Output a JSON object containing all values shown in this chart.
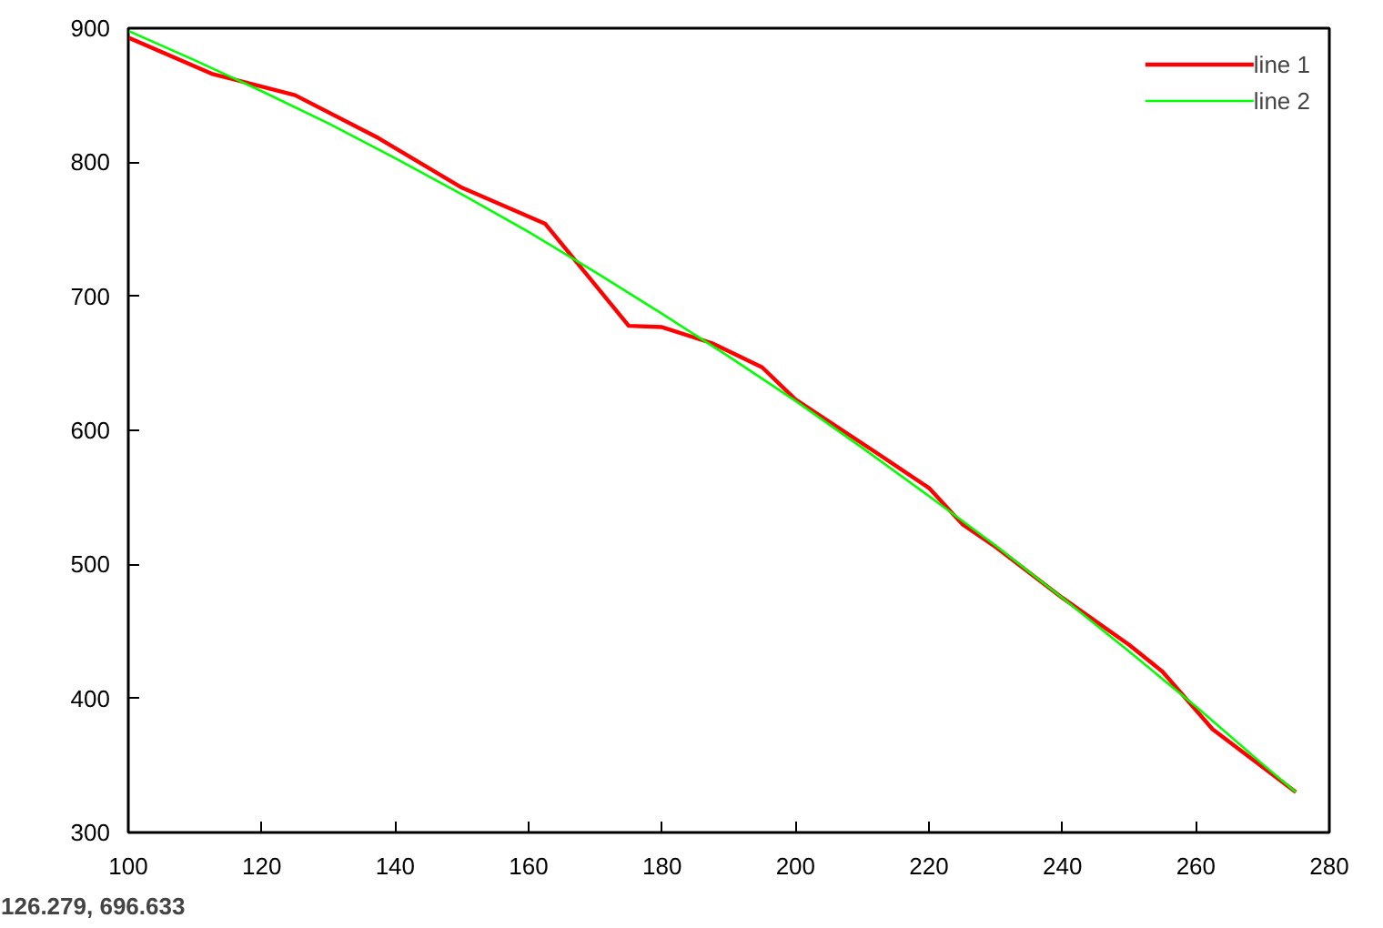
{
  "chart_data": {
    "type": "line",
    "xlim": [
      100,
      280
    ],
    "ylim": [
      300,
      900
    ],
    "xticks": [
      100,
      120,
      140,
      160,
      180,
      200,
      220,
      240,
      260,
      280
    ],
    "yticks": [
      300,
      400,
      500,
      600,
      700,
      800,
      900
    ],
    "grid": false,
    "legend": "top right",
    "marker": "none",
    "line_style": "solid",
    "annotations": [
      "126.279, 696.633"
    ],
    "series": [
      {
        "name": "line 1",
        "color": "#ff0000",
        "x": [
          100,
          112.5,
          125,
          137.5,
          150,
          162.5,
          175,
          180,
          187.5,
          195,
          200,
          212.5,
          220,
          225,
          230,
          240,
          250,
          255,
          262.5,
          275
        ],
        "values": [
          893,
          866,
          850,
          818,
          781,
          754,
          678,
          677,
          665,
          647,
          623,
          582,
          557,
          530,
          513,
          475,
          440,
          420,
          377,
          330
        ]
      },
      {
        "name": "line 2",
        "color": "#00ff00",
        "x": [
          100,
          110,
          120,
          130,
          140,
          150,
          160,
          170,
          180,
          190,
          200,
          210,
          220,
          230,
          240,
          250,
          260,
          270,
          275
        ],
        "values": [
          898,
          876,
          853,
          829,
          803,
          776,
          748,
          718,
          687,
          655,
          622,
          587,
          551,
          514,
          475,
          435,
          394,
          351,
          330
        ]
      }
    ]
  }
}
